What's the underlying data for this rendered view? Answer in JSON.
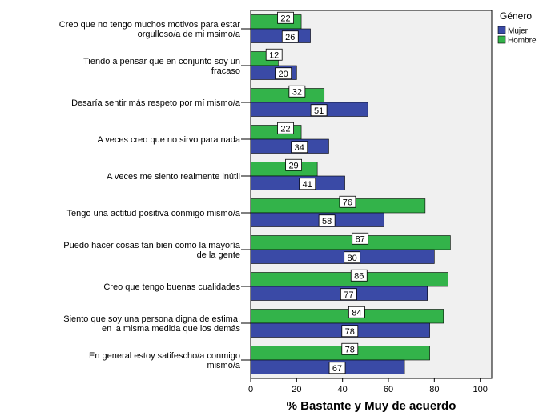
{
  "chart_data": {
    "type": "bar",
    "orientation": "horizontal",
    "categories": [
      [
        "Creo que no tengo muchos motivos para estar",
        "orgulloso/a de mi msimo/a"
      ],
      [
        "Tiendo a pensar que en conjunto soy un",
        "fracaso"
      ],
      [
        "Desaría sentir más respeto por mí mismo/a"
      ],
      [
        "A veces creo que no sirvo para nada"
      ],
      [
        "A veces me siento realmente inútil"
      ],
      [
        "Tengo una actitud positiva conmigo mismo/a"
      ],
      [
        "Puedo hacer cosas tan bien como la mayoría",
        "de la gente"
      ],
      [
        "Creo que tengo buenas cualidades"
      ],
      [
        "Siento que soy una persona digna de estima,",
        "en la misma medida que los demás"
      ],
      [
        "En general estoy satifescho/a conmigo",
        "mismo/a"
      ]
    ],
    "series": [
      {
        "name": "Hombre",
        "color": "#33b34a",
        "values": [
          22,
          12,
          32,
          22,
          29,
          76,
          87,
          86,
          84,
          78
        ]
      },
      {
        "name": "Mujer",
        "color": "#3a4aa6",
        "values": [
          26,
          20,
          51,
          34,
          41,
          58,
          80,
          77,
          78,
          67
        ]
      }
    ],
    "legend_title": "Género",
    "legend_entries": [
      "Mujer",
      "Hombre"
    ],
    "legend_position": "top-right",
    "xlabel": "% Bastante y Muy de acuerdo",
    "xlim": [
      0,
      105
    ],
    "xticks": [
      0,
      20,
      40,
      60,
      80,
      100
    ],
    "plot_background": "#f0f0f0",
    "grid": false
  }
}
